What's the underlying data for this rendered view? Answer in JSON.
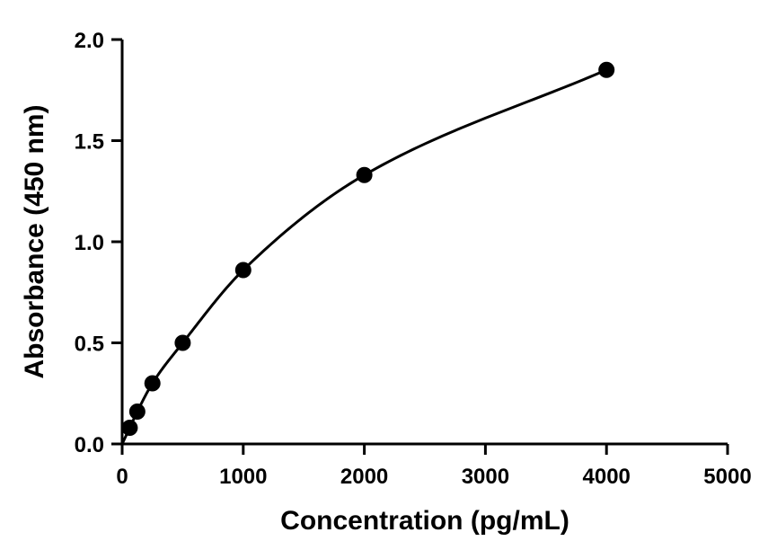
{
  "chart_data": {
    "type": "scatter",
    "title": "",
    "xlabel": "Concentration (pg/mL)",
    "ylabel": "Absorbance (450 nm)",
    "xlim": [
      0,
      5000
    ],
    "ylim": [
      0,
      2.0
    ],
    "xticks": [
      0,
      1000,
      2000,
      3000,
      4000,
      5000
    ],
    "xtick_labels": [
      "0",
      "1000",
      "2000",
      "3000",
      "4000",
      "5000"
    ],
    "yticks": [
      0,
      0.5,
      1.0,
      1.5,
      2.0
    ],
    "ytick_labels": [
      "0.0",
      "0.5",
      "1.0",
      "1.5",
      "2.0"
    ],
    "grid": false,
    "series": [
      {
        "x": [
          62.5,
          125,
          250,
          500,
          1000,
          2000,
          4000
        ],
        "y": [
          0.08,
          0.16,
          0.3,
          0.5,
          0.86,
          1.33,
          1.85
        ],
        "marker": "circle",
        "fit_curve": true
      }
    ],
    "colors": {
      "marker": "#000000",
      "curve": "#000000",
      "axis": "#000000"
    }
  }
}
